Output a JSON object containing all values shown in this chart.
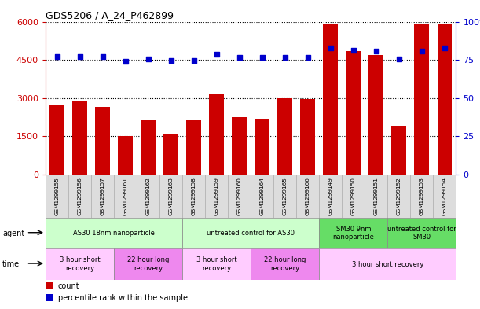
{
  "title": "GDS5206 / A_24_P462899",
  "samples": [
    "GSM1299155",
    "GSM1299156",
    "GSM1299157",
    "GSM1299161",
    "GSM1299162",
    "GSM1299163",
    "GSM1299158",
    "GSM1299159",
    "GSM1299160",
    "GSM1299164",
    "GSM1299165",
    "GSM1299166",
    "GSM1299149",
    "GSM1299150",
    "GSM1299151",
    "GSM1299152",
    "GSM1299153",
    "GSM1299154"
  ],
  "counts": [
    2750,
    2900,
    2650,
    1500,
    2150,
    1600,
    2150,
    3150,
    2250,
    2200,
    3000,
    2950,
    5900,
    4850,
    4700,
    1900,
    5900,
    5900
  ],
  "percentiles": [
    77,
    77,
    77,
    74,
    75.5,
    74.5,
    74.5,
    78.5,
    76.5,
    76.5,
    76.5,
    76.5,
    83,
    81,
    80.5,
    75.5,
    80.5,
    83
  ],
  "ylim_left": [
    0,
    6000
  ],
  "ylim_right": [
    0,
    100
  ],
  "yticks_left": [
    0,
    1500,
    3000,
    4500,
    6000
  ],
  "yticks_right": [
    0,
    25,
    50,
    75,
    100
  ],
  "bar_color": "#cc0000",
  "dot_color": "#0000cc",
  "bg_color": "#ffffff",
  "plot_bg": "#ffffff",
  "agent_groups": [
    {
      "label": "AS30 18nm nanoparticle",
      "start": 0,
      "end": 6,
      "color": "#ccffcc"
    },
    {
      "label": "untreated control for AS30",
      "start": 6,
      "end": 12,
      "color": "#ccffcc"
    },
    {
      "label": "SM30 9nm\nnanoparticle",
      "start": 12,
      "end": 15,
      "color": "#66dd66"
    },
    {
      "label": "untreated control for\nSM30",
      "start": 15,
      "end": 18,
      "color": "#66dd66"
    }
  ],
  "time_groups": [
    {
      "label": "3 hour short\nrecovery",
      "start": 0,
      "end": 3,
      "color": "#ffccff"
    },
    {
      "label": "22 hour long\nrecovery",
      "start": 3,
      "end": 6,
      "color": "#ee88ee"
    },
    {
      "label": "3 hour short\nrecovery",
      "start": 6,
      "end": 9,
      "color": "#ffccff"
    },
    {
      "label": "22 hour long\nrecovery",
      "start": 9,
      "end": 12,
      "color": "#ee88ee"
    },
    {
      "label": "3 hour short recovery",
      "start": 12,
      "end": 18,
      "color": "#ffccff"
    }
  ],
  "legend_items": [
    {
      "label": "count",
      "color": "#cc0000"
    },
    {
      "label": "percentile rank within the sample",
      "color": "#0000cc"
    }
  ],
  "left_ycolor": "#cc0000",
  "right_ycolor": "#0000cc",
  "xlabel_bg": "#dddddd"
}
